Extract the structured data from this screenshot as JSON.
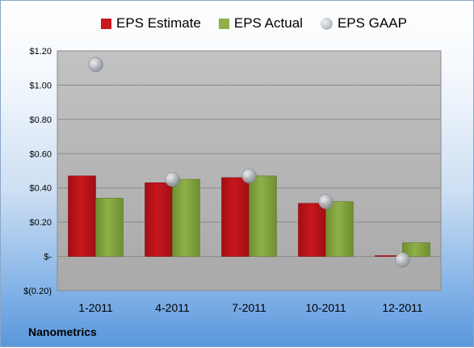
{
  "colors": {
    "estimate": "#c8171d",
    "actual": "#8fb049",
    "gaap": "#aeb4bd",
    "plot_bg": "#b4b4b4"
  },
  "company_name": "Nanometrics",
  "chart_data": {
    "type": "bar",
    "categories": [
      "1-2011",
      "4-2011",
      "7-2011",
      "10-2011",
      "12-2011"
    ],
    "series": [
      {
        "name": "EPS Estimate",
        "kind": "bar",
        "values": [
          0.47,
          0.43,
          0.46,
          0.31,
          0.0
        ]
      },
      {
        "name": "EPS Actual",
        "kind": "bar",
        "values": [
          0.34,
          0.45,
          0.47,
          0.32,
          0.08
        ]
      },
      {
        "name": "EPS GAAP",
        "kind": "marker",
        "values": [
          1.12,
          0.45,
          0.47,
          0.32,
          -0.02
        ]
      }
    ],
    "ylim": [
      -0.2,
      1.2
    ],
    "yticks": [
      -0.2,
      0,
      0.2,
      0.4,
      0.6,
      0.8,
      1.0,
      1.2
    ],
    "ytick_labels": [
      "$(0.20)",
      "$-",
      "$0.20",
      "$0.40",
      "$0.60",
      "$0.80",
      "$1.00",
      "$1.20"
    ],
    "grid": true,
    "legend": "top"
  }
}
